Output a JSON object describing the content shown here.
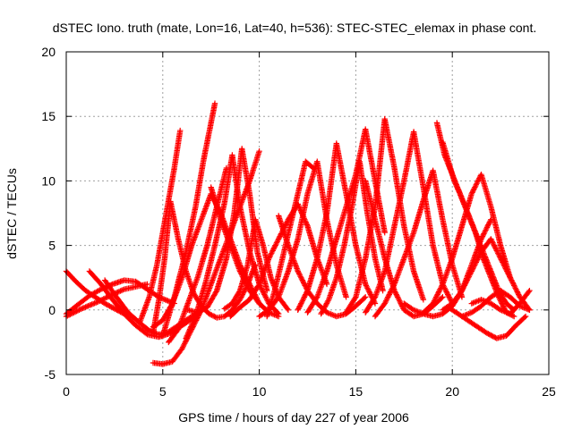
{
  "chart_data": {
    "type": "scatter",
    "title": "dSTEC Iono. truth (mate, Lon=16, Lat=40, h=536): STEC-STEC_elemax in phase cont.",
    "xlabel": "GPS time / hours of day 227 of year 2006",
    "ylabel": "dSTEC  / TECUs",
    "xlim": [
      0,
      25
    ],
    "ylim": [
      -5,
      20
    ],
    "xticks": [
      0,
      5,
      10,
      15,
      20,
      25
    ],
    "yticks": [
      -5,
      0,
      5,
      10,
      15,
      20
    ],
    "grid": true,
    "marker": "+",
    "color": "#ff0000",
    "series": [
      {
        "x": [
          0.0,
          0.5,
          1.0,
          1.5,
          2.0,
          2.5,
          3.0
        ],
        "y": [
          3.0,
          2.2,
          1.5,
          1.0,
          0.5,
          0.1,
          -0.3
        ]
      },
      {
        "x": [
          0.0,
          0.6,
          1.2,
          1.8,
          2.4,
          3.0,
          3.6,
          4.2,
          4.8,
          5.6
        ],
        "y": [
          -0.3,
          0.4,
          1.1,
          1.6,
          2.0,
          2.3,
          2.2,
          1.6,
          1.0,
          0.5
        ]
      },
      {
        "x": [
          0.0,
          0.8,
          1.6,
          2.4,
          3.0,
          3.6,
          4.2
        ],
        "y": [
          -0.5,
          0.1,
          0.6,
          1.2,
          1.6,
          1.8,
          2.0
        ]
      },
      {
        "x": [
          1.2,
          1.8,
          2.4,
          3.0,
          3.6,
          4.2,
          4.8,
          5.4,
          6.0,
          6.6
        ],
        "y": [
          3.0,
          2.0,
          0.8,
          -0.3,
          -1.2,
          -1.9,
          -2.1,
          -1.8,
          -1.2,
          -0.6
        ]
      },
      {
        "x": [
          2.0,
          2.6,
          3.2,
          3.8,
          4.3,
          4.8,
          5.3,
          5.8,
          6.3,
          6.8
        ],
        "y": [
          2.3,
          1.0,
          -0.2,
          -1.0,
          -1.6,
          -1.9,
          -1.7,
          -1.2,
          -0.7,
          -0.2
        ]
      },
      {
        "x": [
          3.8,
          4.3,
          4.7,
          5.0,
          5.3,
          5.6,
          5.9
        ],
        "y": [
          -1.0,
          1.0,
          3.5,
          6.0,
          8.5,
          11.0,
          13.9
        ]
      },
      {
        "x": [
          4.5,
          4.8,
          5.1,
          5.4,
          5.8,
          6.2,
          6.6,
          7.0,
          7.4,
          7.8,
          8.2,
          8.6,
          9.0,
          9.4,
          9.8
        ],
        "y": [
          -1.8,
          0.8,
          4.0,
          8.4,
          5.5,
          3.0,
          1.3,
          0.3,
          -0.3,
          -0.6,
          -0.5,
          0.0,
          0.8,
          2.0,
          3.5
        ]
      },
      {
        "x": [
          4.5,
          5.0,
          5.5,
          6.0,
          6.5,
          7.0,
          7.5,
          8.0,
          8.5,
          9.0,
          9.5,
          10.0,
          10.5
        ],
        "y": [
          -1.3,
          -0.8,
          0.5,
          2.5,
          5.0,
          7.0,
          9.0,
          7.5,
          5.5,
          3.5,
          2.0,
          0.5,
          -0.2
        ]
      },
      {
        "x": [
          5.0,
          5.6,
          6.2,
          6.7,
          7.1,
          7.5,
          7.7
        ],
        "y": [
          -2.0,
          1.0,
          4.5,
          8.0,
          11.5,
          14.5,
          16.0
        ]
      },
      {
        "x": [
          4.5,
          5.0,
          5.5,
          6.0,
          6.5,
          7.0,
          7.5,
          8.0,
          8.5,
          9.0,
          9.5,
          10.0
        ],
        "y": [
          -4.1,
          -4.2,
          -4.0,
          -3.0,
          -1.5,
          0.0,
          2.0,
          4.0,
          6.0,
          8.0,
          10.0,
          12.3
        ]
      },
      {
        "x": [
          5.3,
          5.8,
          6.3,
          6.8,
          7.3,
          7.8,
          8.3
        ],
        "y": [
          -2.5,
          -1.5,
          0.5,
          2.5,
          5.0,
          8.0,
          11.0
        ]
      },
      {
        "x": [
          6.2,
          6.7,
          7.2,
          7.7,
          8.2,
          8.6,
          9.0,
          9.5,
          10.0,
          10.5,
          11.0
        ],
        "y": [
          -2.2,
          -0.5,
          2.0,
          5.0,
          8.3,
          12.0,
          8.0,
          4.5,
          2.0,
          0.5,
          -0.3
        ]
      },
      {
        "x": [
          6.3,
          6.8,
          7.3,
          7.8,
          8.3,
          8.7,
          9.1,
          9.5,
          9.9,
          10.4
        ],
        "y": [
          0.0,
          -0.2,
          0.2,
          1.5,
          4.0,
          7.5,
          12.5,
          9.0,
          4.5,
          1.5
        ]
      },
      {
        "x": [
          7.5,
          8.0,
          8.5,
          9.0,
          9.5,
          10.0,
          10.5,
          11.0
        ],
        "y": [
          9.5,
          7.0,
          5.0,
          3.0,
          1.5,
          0.5,
          -0.2,
          -0.5
        ]
      },
      {
        "x": [
          8.2,
          8.6,
          9.0,
          9.4,
          9.8,
          10.2,
          10.6,
          11.0,
          11.5
        ],
        "y": [
          0.1,
          0.5,
          1.5,
          3.5,
          7.0,
          5.0,
          2.5,
          1.0,
          0.0
        ]
      },
      {
        "x": [
          8.5,
          9.0,
          9.5,
          10.0,
          10.5,
          11.0,
          11.5,
          12.0,
          12.5,
          13.0,
          13.5
        ],
        "y": [
          -0.5,
          0.2,
          0.8,
          2.0,
          4.0,
          5.5,
          7.0,
          8.2,
          6.5,
          4.0,
          2.0
        ]
      },
      {
        "x": [
          10.0,
          10.5,
          11.0,
          11.5,
          12.0,
          12.5,
          13.0,
          13.5,
          14.0,
          14.5
        ],
        "y": [
          -0.5,
          0.0,
          1.0,
          3.0,
          5.5,
          9.0,
          11.5,
          7.0,
          3.5,
          1.0
        ]
      },
      {
        "x": [
          10.4,
          10.8,
          11.2,
          11.6,
          12.0,
          12.4,
          12.8
        ],
        "y": [
          -0.5,
          1.5,
          4.0,
          6.5,
          9.0,
          11.5,
          11.0
        ]
      },
      {
        "x": [
          11.0,
          11.5,
          12.0,
          12.5,
          13.0,
          13.5,
          14.0,
          14.5,
          15.0,
          15.5
        ],
        "y": [
          7.3,
          5.0,
          3.0,
          1.5,
          0.5,
          -0.2,
          -0.5,
          -0.3,
          0.3,
          1.0
        ]
      },
      {
        "x": [
          12.0,
          12.5,
          13.0,
          13.5,
          14.0,
          14.5,
          15.0,
          15.5,
          16.0
        ],
        "y": [
          0.0,
          1.5,
          4.0,
          7.5,
          12.9,
          9.0,
          5.0,
          2.0,
          0.5
        ]
      },
      {
        "x": [
          12.5,
          13.0,
          13.5,
          14.0,
          14.5,
          15.0,
          15.5,
          16.0,
          16.5
        ],
        "y": [
          -0.2,
          1.0,
          3.0,
          5.5,
          8.0,
          10.5,
          14.0,
          10.0,
          6.0
        ]
      },
      {
        "x": [
          13.2,
          13.6,
          14.0,
          14.4,
          14.8,
          15.2,
          15.6,
          16.0,
          16.4
        ],
        "y": [
          -0.3,
          0.8,
          2.5,
          5.0,
          8.0,
          11.5,
          7.5,
          4.0,
          1.5
        ]
      },
      {
        "x": [
          15.5,
          16.0,
          16.5,
          17.0,
          17.5,
          18.0,
          18.5,
          19.0,
          19.5
        ],
        "y": [
          10.0,
          7.0,
          4.0,
          1.5,
          0.0,
          -0.5,
          -0.3,
          0.3,
          1.0
        ]
      },
      {
        "x": [
          14.5,
          15.0,
          15.5,
          16.0,
          16.5,
          17.0,
          17.5,
          18.0,
          18.5
        ],
        "y": [
          -0.2,
          1.0,
          4.0,
          8.0,
          14.8,
          11.0,
          6.5,
          3.0,
          0.8
        ]
      },
      {
        "x": [
          15.5,
          16.0,
          16.5,
          17.0,
          17.5,
          18.0,
          18.5,
          19.0,
          19.5,
          20.0
        ],
        "y": [
          -0.2,
          1.0,
          3.0,
          6.5,
          10.0,
          13.8,
          9.5,
          5.0,
          2.0,
          0.5
        ]
      },
      {
        "x": [
          16.0,
          16.5,
          17.0,
          17.5,
          18.0,
          18.5,
          19.0,
          19.5,
          20.0,
          20.5
        ],
        "y": [
          -0.5,
          0.5,
          2.0,
          4.0,
          6.0,
          8.5,
          10.8,
          7.0,
          3.5,
          1.0
        ]
      },
      {
        "x": [
          17.5,
          18.0,
          18.5,
          19.0,
          19.5,
          20.0,
          20.5,
          21.0,
          21.5,
          22.0
        ],
        "y": [
          0.5,
          0.0,
          -0.3,
          -0.5,
          -0.3,
          0.3,
          1.5,
          3.5,
          5.5,
          7.0
        ]
      },
      {
        "x": [
          18.5,
          19.0,
          19.5,
          20.0,
          20.5,
          21.0,
          21.5,
          22.0,
          22.5,
          23.0
        ],
        "y": [
          -0.2,
          0.5,
          2.0,
          4.0,
          6.5,
          9.0,
          10.5,
          8.0,
          5.0,
          2.5
        ]
      },
      {
        "x": [
          19.2,
          19.6,
          20.0,
          20.4,
          20.8,
          21.2,
          21.6,
          22.0,
          22.4,
          22.8,
          23.2
        ],
        "y": [
          14.5,
          12.0,
          10.5,
          9.0,
          7.5,
          6.0,
          4.5,
          3.0,
          1.5,
          0.5,
          0.0
        ]
      },
      {
        "x": [
          19.5,
          19.8,
          20.1,
          20.4,
          20.8,
          21.2,
          21.6,
          22.0,
          22.4,
          22.8,
          23.2
        ],
        "y": [
          13.0,
          11.5,
          10.0,
          9.0,
          7.5,
          6.0,
          4.0,
          2.5,
          1.0,
          -0.2,
          -0.5
        ]
      },
      {
        "x": [
          19.5,
          20.0,
          20.5,
          21.0,
          21.5,
          22.0,
          22.5,
          23.0,
          23.5,
          24.0
        ],
        "y": [
          0.0,
          0.5,
          1.5,
          3.0,
          4.5,
          5.5,
          4.0,
          2.5,
          1.0,
          0.0
        ]
      },
      {
        "x": [
          19.8,
          20.3,
          20.8,
          21.3,
          21.8,
          22.3,
          22.8,
          23.3,
          23.8
        ],
        "y": [
          0.2,
          -0.3,
          -0.8,
          -1.3,
          -1.8,
          -2.2,
          -2.0,
          -1.2,
          -0.5
        ]
      },
      {
        "x": [
          20.5,
          21.0,
          21.5,
          22.0,
          22.5,
          23.0,
          23.5,
          24.0
        ],
        "y": [
          -0.5,
          -0.2,
          0.3,
          1.0,
          1.5,
          1.0,
          0.3,
          0.0
        ]
      },
      {
        "x": [
          21.0,
          21.5,
          22.0,
          22.5,
          23.0,
          23.5,
          24.0
        ],
        "y": [
          0.5,
          0.8,
          0.5,
          0.0,
          -0.3,
          0.5,
          1.5
        ]
      }
    ]
  }
}
